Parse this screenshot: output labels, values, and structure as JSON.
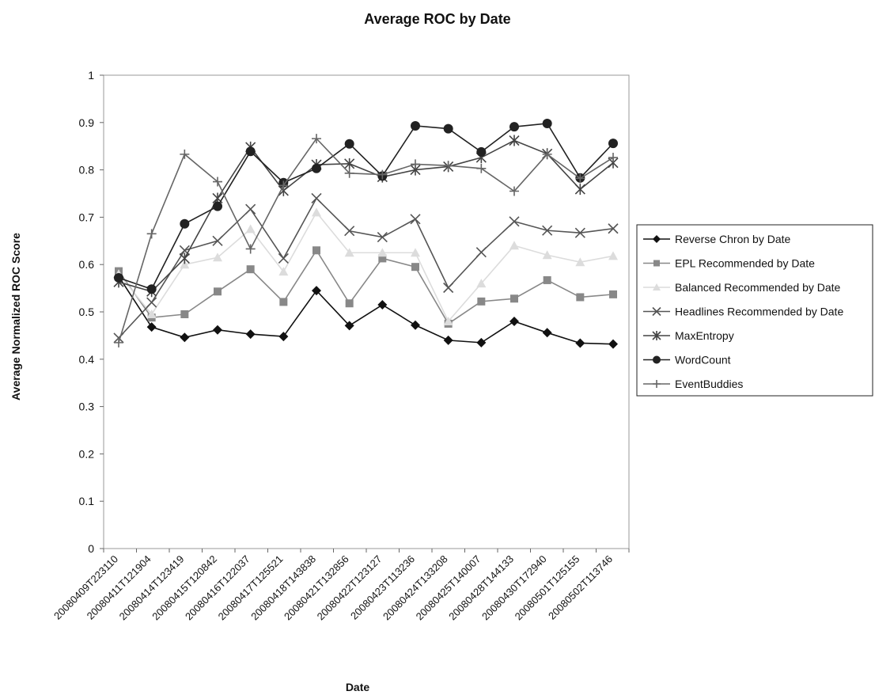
{
  "chart_data": {
    "type": "line",
    "title": "Average ROC by Date",
    "xlabel": "Date",
    "ylabel": "Average Normalized ROC Score",
    "ylim": [
      0,
      1
    ],
    "yticks": [
      "0",
      "0.1",
      "0.2",
      "0.3",
      "0.4",
      "0.5",
      "0.6",
      "0.7",
      "0.8",
      "0.9",
      "1"
    ],
    "grid": false,
    "legend_position": "right",
    "categories": [
      "20080409T223110",
      "20080411T121904",
      "20080414T123419",
      "20080415T120842",
      "20080416T122037",
      "20080417T125521",
      "20080418T143838",
      "20080421T132856",
      "20080422T123127",
      "20080423T113236",
      "20080424T133208",
      "20080425T140007",
      "20080428T144133",
      "20080430T172940",
      "20080501T125155",
      "20080502T113746"
    ],
    "series": [
      {
        "name": "Reverse Chron by Date",
        "color": "#111111",
        "marker": "diamond",
        "x": [
          0,
          1,
          2,
          3,
          4,
          5,
          6,
          7,
          8,
          9,
          10,
          11,
          12,
          13,
          14,
          15
        ],
        "values": [
          0.575,
          0.468,
          0.446,
          0.462,
          0.453,
          0.448,
          0.545,
          0.471,
          0.515,
          0.472,
          0.44,
          0.435,
          0.48,
          0.456,
          0.434,
          0.432
        ]
      },
      {
        "name": "EPL Recommended by Date",
        "color": "#888888",
        "marker": "square",
        "x": [
          0,
          1,
          2,
          3,
          4,
          5,
          6,
          7,
          8,
          9,
          10,
          11,
          12,
          13,
          14,
          15
        ],
        "values": [
          0.586,
          0.488,
          0.495,
          0.543,
          0.59,
          0.521,
          0.63,
          0.518,
          0.613,
          0.595,
          0.475,
          0.522,
          0.528,
          0.567,
          0.531,
          0.537
        ]
      },
      {
        "name": "Balanced Recommended by Date",
        "color": "#dcdcdc",
        "marker": "triangle",
        "x": [
          0,
          1,
          2,
          3,
          4,
          5,
          6,
          7,
          8,
          9,
          10,
          11,
          12,
          13,
          14,
          15
        ],
        "values": [
          0.58,
          0.495,
          0.6,
          0.615,
          0.675,
          0.585,
          0.71,
          0.625,
          0.625,
          0.625,
          0.48,
          0.56,
          0.64,
          0.62,
          0.605,
          0.618
        ]
      },
      {
        "name": "Headlines Recommended by Date",
        "color": "#555555",
        "marker": "x",
        "x": [
          0,
          1,
          2,
          3,
          4,
          5,
          6,
          7,
          8,
          9,
          10,
          11,
          12,
          13,
          14,
          15
        ],
        "values": [
          0.445,
          0.52,
          0.63,
          0.65,
          0.717,
          0.613,
          0.74,
          0.671,
          0.658,
          0.696,
          0.551,
          0.626,
          0.691,
          0.672,
          0.667,
          0.676
        ]
      },
      {
        "name": "MaxEntropy",
        "color": "#444444",
        "marker": "star",
        "x": [
          0,
          1,
          2,
          3,
          4,
          5,
          6,
          7,
          8,
          9,
          10,
          11,
          12,
          13,
          14,
          15
        ],
        "values": [
          0.563,
          0.543,
          0.613,
          0.74,
          0.848,
          0.756,
          0.811,
          0.813,
          0.785,
          0.8,
          0.807,
          0.826,
          0.862,
          0.834,
          0.759,
          0.815
        ]
      },
      {
        "name": "WordCount",
        "color": "#222222",
        "marker": "circle",
        "x": [
          0,
          1,
          2,
          3,
          4,
          5,
          6,
          7,
          8,
          9,
          10,
          11,
          12,
          13,
          14,
          15
        ],
        "values": [
          0.572,
          0.548,
          0.686,
          0.723,
          0.839,
          0.773,
          0.803,
          0.855,
          0.787,
          0.893,
          0.887,
          0.838,
          0.891,
          0.898,
          0.783,
          0.856
        ]
      },
      {
        "name": "EventBuddies",
        "color": "#666666",
        "marker": "plus",
        "x": [
          0,
          1,
          2,
          3,
          4,
          5,
          6,
          7,
          8,
          9,
          10,
          11,
          12,
          13,
          14,
          15
        ],
        "values": [
          0.435,
          0.665,
          0.833,
          0.775,
          0.633,
          0.767,
          0.866,
          0.793,
          0.79,
          0.812,
          0.809,
          0.803,
          0.755,
          0.833,
          0.782,
          0.826
        ]
      }
    ]
  }
}
